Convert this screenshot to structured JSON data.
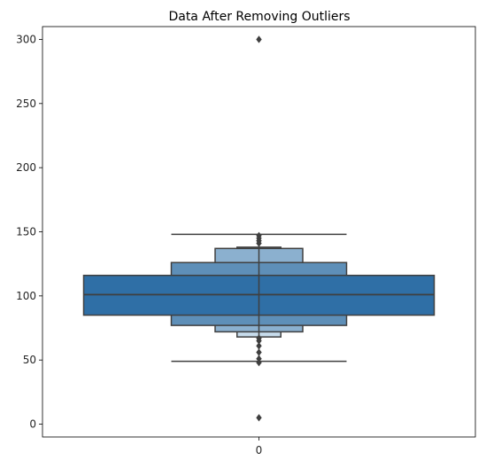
{
  "chart_data": {
    "type": "boxen",
    "title": "Data After Removing Outliers",
    "xlabel": "",
    "ylabel": "",
    "categories": [
      "0"
    ],
    "yticks": [
      0,
      50,
      100,
      150,
      200,
      250,
      300
    ],
    "ylim": [
      -10,
      310
    ],
    "grid": false,
    "median": 101,
    "letter_value_boxes": [
      {
        "level": 1,
        "lower": 85,
        "upper": 116,
        "color": "#2f6fa6"
      },
      {
        "level": 2,
        "lower": 77,
        "upper": 126,
        "color": "#5e8fb8"
      },
      {
        "level": 3,
        "lower": 72,
        "upper": 137,
        "color": "#8bb0cf"
      },
      {
        "level": 4,
        "lower": 68,
        "upper": 138,
        "color": "#c7dcec"
      }
    ],
    "whiskers": {
      "lower": 49,
      "upper": 148
    },
    "outliers": [
      5,
      48,
      51,
      56,
      61,
      65,
      67,
      141,
      143,
      145,
      147,
      300
    ],
    "colors": {
      "edge": "#3f3f3f",
      "outlier": "#3f3f3f",
      "axis": "#000000"
    }
  }
}
